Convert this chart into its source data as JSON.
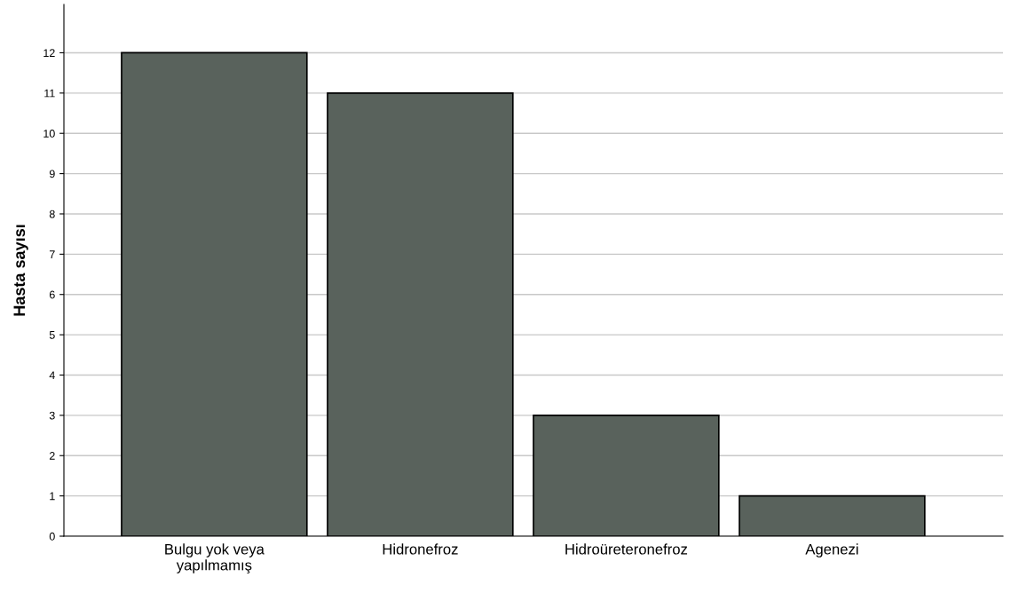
{
  "chart_data": {
    "type": "bar",
    "ylabel": "Hasta sayısı",
    "categories": [
      "Bulgu yok veya\nyapılmamış",
      "Hidronefroz",
      "Hidroüreteronefroz",
      "Agenezi"
    ],
    "values": [
      12,
      11,
      3,
      1
    ],
    "color": "#59625c",
    "ylim": [
      0,
      13.2
    ],
    "yticks": [
      0,
      1,
      2,
      3,
      4,
      5,
      6,
      7,
      8,
      9,
      10,
      11,
      12
    ],
    "grid": "y"
  }
}
